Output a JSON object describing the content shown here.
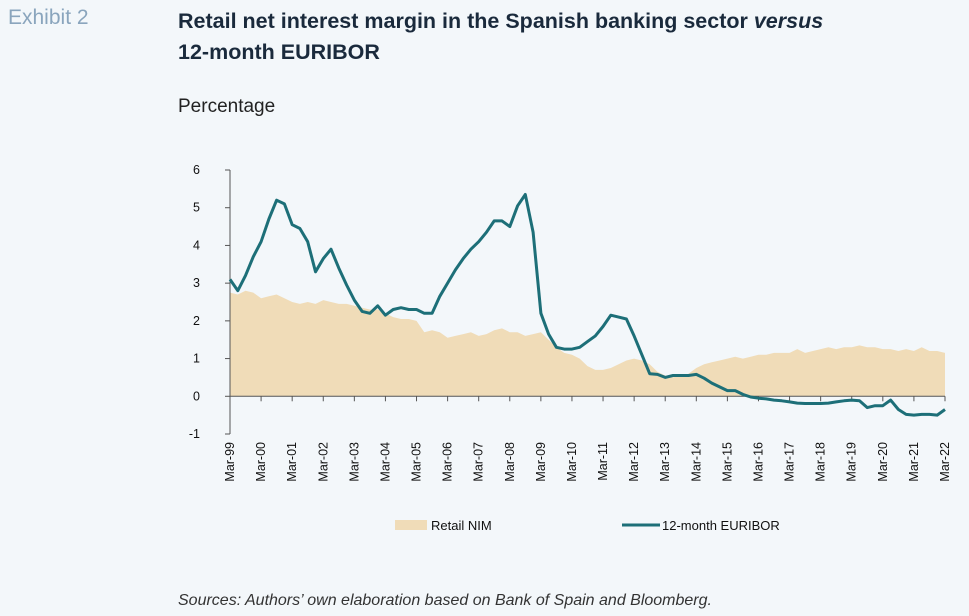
{
  "exhibit": "Exhibit 2",
  "title_main": "Retail net interest margin in the Spanish banking sector ",
  "title_italic": "versus",
  "title_line2": "12-month EURIBOR",
  "unit": "Percentage",
  "source": "Sources: Authors’ own elaboration based on Bank of Spain and Bloomberg.",
  "colors": {
    "nim_fill": "#f0dcb8",
    "euribor_line": "#1d6f78"
  },
  "chart_data": {
    "type": "line",
    "ylim": [
      -1,
      6
    ],
    "yticks": [
      -1,
      0,
      1,
      2,
      3,
      4,
      5,
      6
    ],
    "categories": [
      "Mar-99",
      "Mar-00",
      "Mar-01",
      "Mar-02",
      "Mar-03",
      "Mar-04",
      "Mar-05",
      "Mar-06",
      "Mar-07",
      "Mar-08",
      "Mar-09",
      "Mar-10",
      "Mar-11",
      "Mar-12",
      "Mar-13",
      "Mar-14",
      "Mar-15",
      "Mar-16",
      "Mar-17",
      "Mar-18",
      "Mar-19",
      "Mar-20",
      "Mar-21",
      "Mar-22"
    ],
    "series": [
      {
        "name": "Retail NIM",
        "type": "area",
        "x": [
          1999,
          1999.25,
          1999.5,
          1999.75,
          2000,
          2000.25,
          2000.5,
          2000.75,
          2001,
          2001.25,
          2001.5,
          2001.75,
          2002,
          2002.25,
          2002.5,
          2002.75,
          2003,
          2003.25,
          2003.5,
          2003.75,
          2004,
          2004.25,
          2004.5,
          2004.75,
          2005,
          2005.25,
          2005.5,
          2005.75,
          2006,
          2006.25,
          2006.5,
          2006.75,
          2007,
          2007.25,
          2007.5,
          2007.75,
          2008,
          2008.25,
          2008.5,
          2008.75,
          2009,
          2009.25,
          2009.5,
          2009.75,
          2010,
          2010.25,
          2010.5,
          2010.75,
          2011,
          2011.25,
          2011.5,
          2011.75,
          2012,
          2012.25,
          2012.5,
          2012.75,
          2013,
          2013.25,
          2013.5,
          2013.75,
          2014,
          2014.25,
          2014.5,
          2014.75,
          2015,
          2015.25,
          2015.5,
          2015.75,
          2016,
          2016.25,
          2016.5,
          2016.75,
          2017,
          2017.25,
          2017.5,
          2017.75,
          2018,
          2018.25,
          2018.5,
          2018.75,
          2019,
          2019.25,
          2019.5,
          2019.75,
          2020,
          2020.25,
          2020.5,
          2020.75,
          2021,
          2021.25,
          2021.5,
          2021.75,
          2022
        ],
        "values": [
          2.75,
          2.7,
          2.8,
          2.75,
          2.6,
          2.65,
          2.7,
          2.6,
          2.5,
          2.45,
          2.5,
          2.45,
          2.55,
          2.5,
          2.45,
          2.45,
          2.4,
          2.35,
          2.3,
          2.3,
          2.2,
          2.1,
          2.05,
          2.05,
          2.0,
          1.7,
          1.75,
          1.7,
          1.55,
          1.6,
          1.65,
          1.7,
          1.6,
          1.65,
          1.75,
          1.8,
          1.7,
          1.7,
          1.6,
          1.65,
          1.7,
          1.5,
          1.3,
          1.15,
          1.1,
          1.0,
          0.8,
          0.7,
          0.7,
          0.75,
          0.85,
          0.95,
          1.0,
          0.95,
          0.85,
          0.65,
          0.55,
          0.5,
          0.55,
          0.6,
          0.75,
          0.85,
          0.9,
          0.95,
          1.0,
          1.05,
          1.0,
          1.05,
          1.1,
          1.1,
          1.15,
          1.15,
          1.15,
          1.25,
          1.15,
          1.2,
          1.25,
          1.3,
          1.25,
          1.3,
          1.3,
          1.35,
          1.3,
          1.3,
          1.25,
          1.25,
          1.2,
          1.25,
          1.2,
          1.3,
          1.2,
          1.2,
          1.15
        ]
      },
      {
        "name": "12-month EURIBOR",
        "type": "line",
        "x": [
          1999,
          1999.25,
          1999.5,
          1999.75,
          2000,
          2000.25,
          2000.5,
          2000.75,
          2001,
          2001.25,
          2001.5,
          2001.75,
          2002,
          2002.25,
          2002.5,
          2002.75,
          2003,
          2003.25,
          2003.5,
          2003.75,
          2004,
          2004.25,
          2004.5,
          2004.75,
          2005,
          2005.25,
          2005.5,
          2005.75,
          2006,
          2006.25,
          2006.5,
          2006.75,
          2007,
          2007.25,
          2007.5,
          2007.75,
          2008,
          2008.25,
          2008.5,
          2008.75,
          2009,
          2009.25,
          2009.5,
          2009.75,
          2010,
          2010.25,
          2010.5,
          2010.75,
          2011,
          2011.25,
          2011.5,
          2011.75,
          2012,
          2012.25,
          2012.5,
          2012.75,
          2013,
          2013.25,
          2013.5,
          2013.75,
          2014,
          2014.25,
          2014.5,
          2014.75,
          2015,
          2015.25,
          2015.5,
          2015.75,
          2016,
          2016.25,
          2016.5,
          2016.75,
          2017,
          2017.25,
          2017.5,
          2017.75,
          2018,
          2018.25,
          2018.5,
          2018.75,
          2019,
          2019.25,
          2019.5,
          2019.75,
          2020,
          2020.25,
          2020.5,
          2020.75,
          2021,
          2021.25,
          2021.5,
          2021.75,
          2022
        ],
        "values": [
          3.1,
          2.8,
          3.2,
          3.7,
          4.1,
          4.7,
          5.2,
          5.1,
          4.55,
          4.45,
          4.1,
          3.3,
          3.65,
          3.9,
          3.4,
          2.95,
          2.55,
          2.25,
          2.2,
          2.4,
          2.15,
          2.3,
          2.35,
          2.3,
          2.3,
          2.2,
          2.2,
          2.65,
          3.0,
          3.35,
          3.65,
          3.9,
          4.1,
          4.35,
          4.65,
          4.65,
          4.5,
          5.05,
          5.35,
          4.35,
          2.2,
          1.65,
          1.3,
          1.25,
          1.25,
          1.3,
          1.45,
          1.6,
          1.85,
          2.15,
          2.1,
          2.05,
          1.6,
          1.1,
          0.6,
          0.58,
          0.5,
          0.55,
          0.55,
          0.55,
          0.58,
          0.48,
          0.35,
          0.25,
          0.15,
          0.15,
          0.05,
          -0.02,
          -0.05,
          -0.07,
          -0.1,
          -0.12,
          -0.15,
          -0.18,
          -0.19,
          -0.19,
          -0.19,
          -0.18,
          -0.15,
          -0.12,
          -0.1,
          -0.12,
          -0.3,
          -0.25,
          -0.25,
          -0.1,
          -0.35,
          -0.48,
          -0.5,
          -0.48,
          -0.48,
          -0.5,
          -0.35
        ]
      }
    ]
  }
}
